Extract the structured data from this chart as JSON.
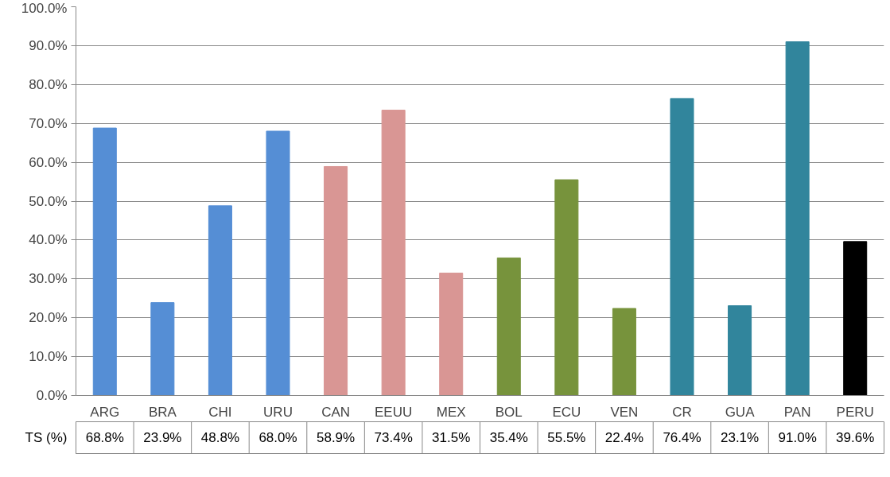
{
  "chart_data": {
    "type": "bar",
    "categories": [
      "ARG",
      "BRA",
      "CHI",
      "URU",
      "CAN",
      "EEUU",
      "MEX",
      "BOL",
      "ECU",
      "VEN",
      "CR",
      "GUA",
      "PAN",
      "PERU"
    ],
    "series": [
      {
        "name": "TS (%)",
        "values": [
          68.8,
          23.9,
          48.8,
          68.0,
          58.9,
          73.4,
          31.5,
          35.4,
          55.5,
          22.4,
          76.4,
          23.1,
          91.0,
          39.6
        ],
        "value_labels": [
          "68.8%",
          "23.9%",
          "48.8%",
          "68.0%",
          "58.9%",
          "73.4%",
          "31.5%",
          "35.4%",
          "55.5%",
          "22.4%",
          "76.4%",
          "23.1%",
          "91.0%",
          "39.6%"
        ],
        "colors": [
          "#558ed5",
          "#558ed5",
          "#558ed5",
          "#558ed5",
          "#d99694",
          "#d99694",
          "#d99694",
          "#77933c",
          "#77933c",
          "#77933c",
          "#31859c",
          "#31859c",
          "#31859c",
          "#000000"
        ]
      }
    ],
    "ylim": [
      0,
      100
    ],
    "yticks": [
      {
        "value": 0,
        "label": "0.0%"
      },
      {
        "value": 10,
        "label": "10.0%"
      },
      {
        "value": 20,
        "label": "20.0%"
      },
      {
        "value": 30,
        "label": "30.0%"
      },
      {
        "value": 40,
        "label": "40.0%"
      },
      {
        "value": 50,
        "label": "50.0%"
      },
      {
        "value": 60,
        "label": "60.0%"
      },
      {
        "value": 70,
        "label": "70.0%"
      },
      {
        "value": 80,
        "label": "80.0%"
      },
      {
        "value": 90,
        "label": "90.0%"
      },
      {
        "value": 100,
        "label": "100.0%"
      }
    ],
    "grid": "y",
    "legend": false
  }
}
